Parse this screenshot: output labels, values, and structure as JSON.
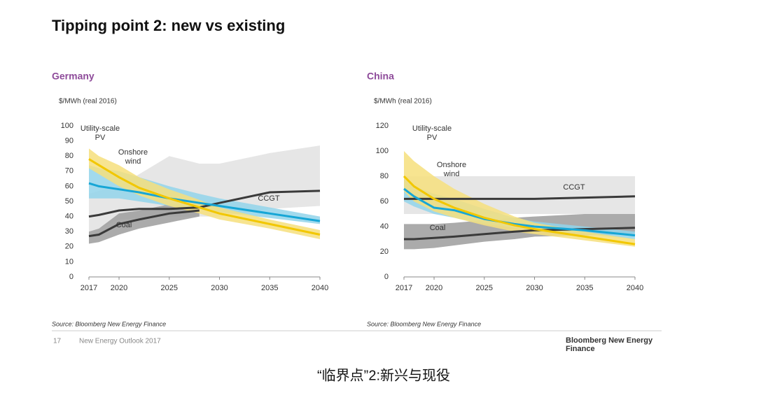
{
  "page": {
    "title": "Tipping point 2: new vs existing",
    "footer_page": "17",
    "footer_text": "New Energy Outlook 2017",
    "logo": "Bloomberg New Energy Finance",
    "caption": "“临界点”2:新兴与现役"
  },
  "chart_data": [
    {
      "type": "line",
      "title": "Germany",
      "y_label": "$/MWh (real 2016)",
      "source": "Source: Bloomberg New Energy Finance",
      "x": [
        2017,
        2018,
        2020,
        2022,
        2025,
        2028,
        2030,
        2035,
        2040
      ],
      "xlim": [
        2017,
        2040
      ],
      "xticks": [
        2017,
        2020,
        2025,
        2030,
        2035,
        2040
      ],
      "ylim": [
        0,
        100
      ],
      "yticks": [
        0,
        10,
        20,
        30,
        40,
        50,
        60,
        70,
        80,
        90,
        100
      ],
      "series": [
        {
          "name": "CCGT",
          "color": "#3a3a3a",
          "band_color": "#e2e2e2",
          "values": [
            40,
            41,
            44,
            45,
            45,
            46,
            49,
            56,
            57
          ],
          "lower": [
            30,
            32,
            38,
            39,
            40,
            40,
            40,
            45,
            47
          ],
          "upper": [
            55,
            57,
            60,
            68,
            80,
            75,
            75,
            82,
            87
          ]
        },
        {
          "name": "Coal",
          "color": "#3a3a3a",
          "band_color": "#9c9c9c",
          "values": [
            27,
            28,
            35,
            38,
            42,
            44,
            null,
            null,
            null
          ],
          "lower": [
            22,
            23,
            28,
            32,
            36,
            40,
            null,
            null,
            null
          ],
          "upper": [
            30,
            32,
            42,
            44,
            48,
            48,
            null,
            null,
            null
          ]
        },
        {
          "name": "Onshore wind",
          "color": "#16a6d6",
          "band_color": "#92d4ea",
          "values": [
            62,
            60,
            58,
            56,
            52,
            49,
            47,
            42,
            37
          ],
          "lower": [
            52,
            52,
            52,
            50,
            47,
            45,
            43,
            39,
            35
          ],
          "upper": [
            74,
            72,
            70,
            66,
            60,
            55,
            52,
            46,
            40
          ]
        },
        {
          "name": "Utility-scale PV",
          "color": "#f2c700",
          "band_color": "#f6df7c",
          "values": [
            78,
            74,
            66,
            59,
            52,
            46,
            42,
            35,
            28
          ],
          "lower": [
            72,
            68,
            60,
            54,
            47,
            42,
            38,
            32,
            25
          ],
          "upper": [
            85,
            80,
            74,
            66,
            58,
            51,
            46,
            38,
            31
          ]
        }
      ]
    },
    {
      "type": "line",
      "title": "China",
      "y_label": "$/MWh (real 2016)",
      "source": "Source: Bloomberg New Energy Finance",
      "x": [
        2017,
        2018,
        2020,
        2022,
        2025,
        2028,
        2030,
        2035,
        2040
      ],
      "xlim": [
        2017,
        2040
      ],
      "xticks": [
        2017,
        2020,
        2025,
        2030,
        2035,
        2040
      ],
      "ylim": [
        0,
        120
      ],
      "yticks": [
        0,
        20,
        40,
        60,
        80,
        100,
        120
      ],
      "series": [
        {
          "name": "CCGT",
          "color": "#3a3a3a",
          "band_color": "#e2e2e2",
          "values": [
            62,
            62,
            62,
            62,
            62,
            62,
            62,
            63,
            64
          ],
          "lower": [
            50,
            50,
            50,
            50,
            50,
            50,
            50,
            50,
            50
          ],
          "upper": [
            80,
            80,
            80,
            80,
            80,
            80,
            80,
            80,
            80
          ]
        },
        {
          "name": "Coal",
          "color": "#3a3a3a",
          "band_color": "#9c9c9c",
          "values": [
            30,
            30,
            31,
            32,
            34,
            36,
            37,
            38,
            39
          ],
          "lower": [
            22,
            22,
            23,
            25,
            28,
            30,
            32,
            33,
            34
          ],
          "upper": [
            42,
            42,
            42,
            43,
            45,
            47,
            48,
            50,
            50
          ]
        },
        {
          "name": "Onshore wind",
          "color": "#16a6d6",
          "band_color": "#92d4ea",
          "values": [
            70,
            64,
            55,
            53,
            46,
            42,
            40,
            37,
            33
          ],
          "lower": [
            60,
            56,
            50,
            47,
            42,
            39,
            37,
            34,
            30
          ],
          "upper": [
            78,
            72,
            66,
            62,
            54,
            47,
            44,
            40,
            36
          ]
        },
        {
          "name": "Utility-scale PV",
          "color": "#f2c700",
          "band_color": "#f6df7c",
          "values": [
            80,
            72,
            62,
            55,
            47,
            41,
            38,
            32,
            26
          ],
          "lower": [
            68,
            60,
            52,
            47,
            41,
            36,
            34,
            29,
            24
          ],
          "upper": [
            100,
            92,
            80,
            70,
            58,
            48,
            43,
            36,
            30
          ]
        }
      ]
    }
  ]
}
